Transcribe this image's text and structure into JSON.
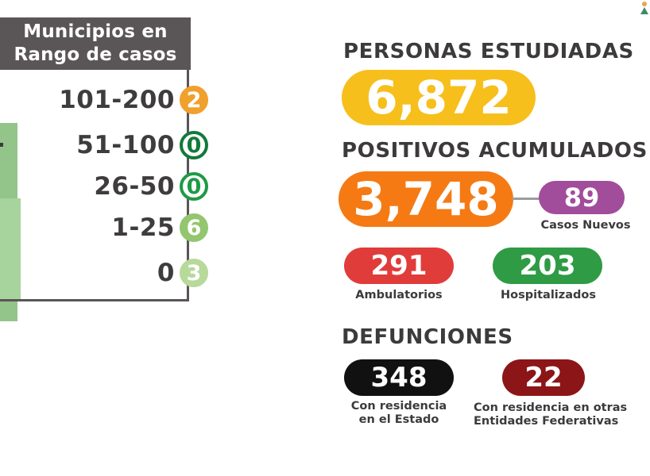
{
  "legend": {
    "title_line1": "Municipios en",
    "title_line2": "Rango de casos",
    "ranges": [
      {
        "label": "101-200",
        "count": "2",
        "color": "#f0a02c"
      },
      {
        "label": "51-100",
        "count": "0",
        "color": "#127a3a"
      },
      {
        "label": "26-50",
        "count": "0",
        "color": "#1f9a45"
      },
      {
        "label": "1-25",
        "count": "6",
        "color": "#93c66f"
      },
      {
        "label": "0",
        "count": "3",
        "color": "#b7d99a"
      }
    ]
  },
  "stats": {
    "studied_heading": "PERSONAS ESTUDIADAS",
    "studied_value": "6,872",
    "positives_heading": "POSITIVOS ACUMULADOS",
    "positives_value": "3,748",
    "new_cases_value": "89",
    "new_cases_label": "Casos Nuevos",
    "ambulatory_value": "291",
    "ambulatory_label": "Ambulatorios",
    "hospitalized_value": "203",
    "hospitalized_label": "Hospitalizados",
    "deaths_heading": "DEFUNCIONES",
    "deaths_state_value": "348",
    "deaths_state_label_line1": "Con residencia",
    "deaths_state_label_line2": "en el Estado",
    "deaths_other_value": "22",
    "deaths_other_label_line1": "Con residencia en otras",
    "deaths_other_label_line2": "Entidades Federativas"
  },
  "colors": {
    "studied": "#f7bf1c",
    "positives": "#f57a14",
    "new_cases": "#a24c9c",
    "ambulatory": "#e03c3a",
    "hospitalized": "#2f9b45",
    "deaths_state": "#111111",
    "deaths_other": "#8c1518"
  }
}
